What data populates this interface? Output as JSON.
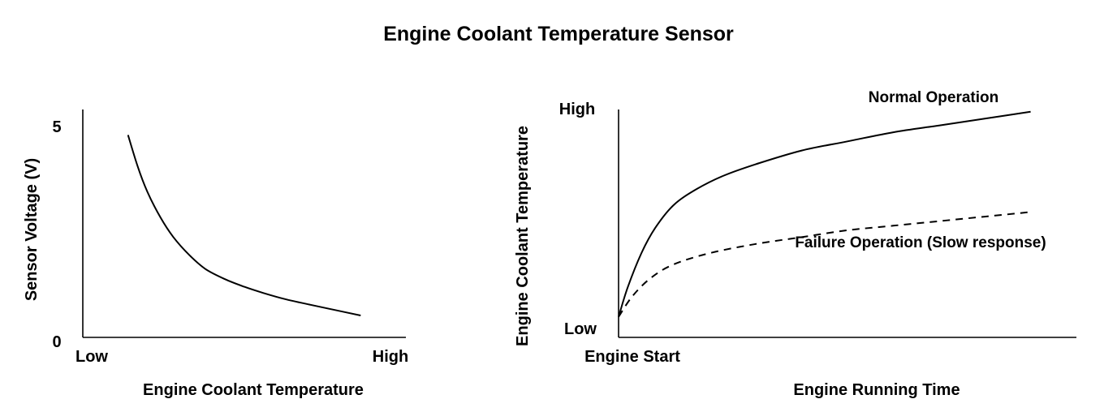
{
  "title": "Engine Coolant Temperature Sensor",
  "chart_data": [
    {
      "type": "line",
      "xlabel": "Engine Coolant Temperature",
      "ylabel": "Sensor Voltage (V)",
      "x_tick_labels": [
        "Low",
        "High"
      ],
      "y_tick_labels": [
        "0",
        "5"
      ],
      "xlim": [
        0,
        1
      ],
      "ylim": [
        0,
        5
      ],
      "grid": false,
      "series": [
        {
          "x": [
            0.14,
            0.17,
            0.2,
            0.24,
            0.28,
            0.33,
            0.38,
            0.44,
            0.5,
            0.56,
            0.63,
            0.7,
            0.78,
            0.86
          ],
          "y": [
            4.8,
            4.05,
            3.45,
            2.85,
            2.38,
            1.95,
            1.62,
            1.38,
            1.2,
            1.05,
            0.9,
            0.78,
            0.65,
            0.52
          ],
          "style": "solid",
          "color": "#000000"
        }
      ]
    },
    {
      "type": "line",
      "xlabel": "Engine Running Time",
      "ylabel": "Engine Coolant Temperature",
      "x_tick_labels": [
        "Engine Start"
      ],
      "y_tick_labels": [
        "Low",
        "High"
      ],
      "xlim": [
        0,
        1
      ],
      "ylim": [
        0,
        1
      ],
      "grid": false,
      "series": [
        {
          "name": "Normal Operation",
          "x": [
            0.0,
            0.02,
            0.05,
            0.08,
            0.12,
            0.17,
            0.23,
            0.3,
            0.4,
            0.5,
            0.6,
            0.7,
            0.8,
            0.9
          ],
          "y": [
            0.09,
            0.22,
            0.37,
            0.48,
            0.58,
            0.65,
            0.71,
            0.76,
            0.82,
            0.86,
            0.9,
            0.93,
            0.96,
            0.99
          ],
          "style": "solid",
          "color": "#000000"
        },
        {
          "name": "Failure Operation (Slow response)",
          "x": [
            0.0,
            0.03,
            0.07,
            0.12,
            0.2,
            0.3,
            0.4,
            0.5,
            0.6,
            0.7,
            0.8,
            0.9
          ],
          "y": [
            0.09,
            0.18,
            0.26,
            0.32,
            0.37,
            0.41,
            0.44,
            0.47,
            0.49,
            0.51,
            0.53,
            0.55
          ],
          "style": "dashed",
          "color": "#000000"
        }
      ]
    }
  ]
}
